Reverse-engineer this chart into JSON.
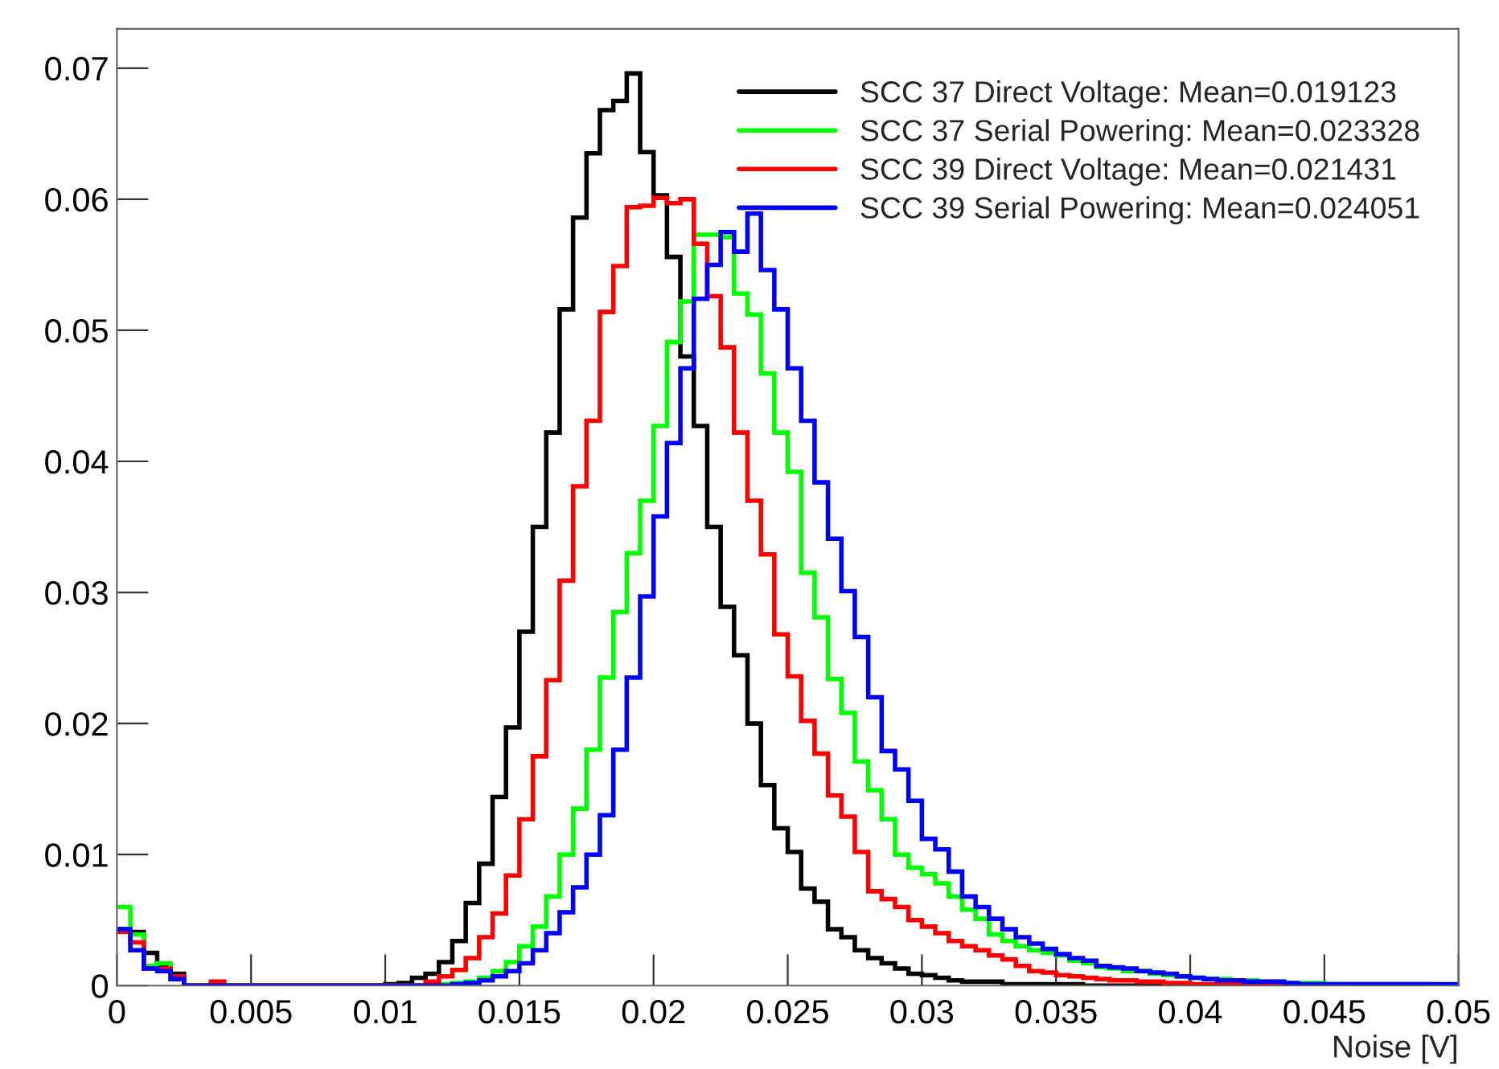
{
  "chart_data": {
    "type": "histogram",
    "xlabel": "Noise [V]",
    "bins": [
      0,
      0.0005,
      0.001,
      0.0015,
      0.002,
      0.0025,
      0.003,
      0.0035,
      0.004,
      0.0045,
      0.005,
      0.0055,
      0.006,
      0.0065,
      0.007,
      0.0075,
      0.008,
      0.0085,
      0.009,
      0.0095,
      0.01,
      0.0105,
      0.011,
      0.0115,
      0.012,
      0.0125,
      0.013,
      0.0135,
      0.014,
      0.0145,
      0.015,
      0.0155,
      0.016,
      0.0165,
      0.017,
      0.0175,
      0.018,
      0.0185,
      0.019,
      0.0195,
      0.02,
      0.0205,
      0.021,
      0.0215,
      0.022,
      0.0225,
      0.023,
      0.0235,
      0.024,
      0.0245,
      0.025,
      0.0255,
      0.026,
      0.0265,
      0.027,
      0.0275,
      0.028,
      0.0285,
      0.029,
      0.0295,
      0.03,
      0.0305,
      0.031,
      0.0315,
      0.032,
      0.0325,
      0.033,
      0.0335,
      0.034,
      0.0345,
      0.035,
      0.0355,
      0.036,
      0.0365,
      0.037,
      0.0375,
      0.038,
      0.0385,
      0.039,
      0.0395,
      0.04,
      0.0405,
      0.041,
      0.0415,
      0.042,
      0.0425,
      0.043,
      0.0435,
      0.044,
      0.0445,
      0.045,
      0.0455,
      0.046,
      0.0465,
      0.047,
      0.0475,
      0.048,
      0.0485,
      0.049,
      0.0495,
      0.05
    ],
    "series": [
      {
        "name": "SCC 37 Direct Voltage: Mean=0.019123",
        "color": "#000000",
        "values": [
          0.0043,
          0.0041,
          0.0025,
          0.0015,
          0.0009,
          0,
          0,
          0,
          0,
          0,
          0,
          0,
          0,
          0,
          0,
          0,
          0,
          0,
          0,
          0,
          0.0001,
          0.0002,
          0.0006,
          0.0009,
          0.0018,
          0.0034,
          0.0063,
          0.0093,
          0.0144,
          0.0197,
          0.027,
          0.035,
          0.0422,
          0.0516,
          0.0586,
          0.0635,
          0.0668,
          0.0675,
          0.0696,
          0.0636,
          0.0603,
          0.0556,
          0.048,
          0.0427,
          0.035,
          0.0289,
          0.0252,
          0.02,
          0.0153,
          0.012,
          0.0102,
          0.0074,
          0.0064,
          0.0043,
          0.0037,
          0.0027,
          0.0021,
          0.0017,
          0.0013,
          0.0009,
          0.0008,
          0.0006,
          0.0004,
          0.0003,
          0.0003,
          0.0003,
          0.0001,
          0.0001,
          0.0001,
          0.0001,
          0.0001,
          0.0001,
          0,
          0,
          0,
          0,
          0,
          0,
          0,
          0,
          0,
          0,
          0,
          0,
          0,
          0,
          0,
          0,
          0,
          0,
          0,
          0,
          0,
          0,
          0,
          0,
          0,
          0,
          0,
          0
        ]
      },
      {
        "name": "SCC 37 Serial Powering: Mean=0.023328",
        "color": "#00ff00",
        "values": [
          0.006,
          0.0039,
          0.0015,
          0.0017,
          0.0005,
          0,
          0,
          0,
          0,
          0,
          0,
          0,
          0,
          0,
          0,
          0,
          0,
          0,
          0,
          0,
          0,
          0,
          0,
          0,
          0.0001,
          0.0002,
          0.0003,
          0.0006,
          0.0011,
          0.0018,
          0.003,
          0.0045,
          0.0068,
          0.01,
          0.0135,
          0.018,
          0.0235,
          0.0285,
          0.033,
          0.037,
          0.0427,
          0.0491,
          0.0522,
          0.0573,
          0.0573,
          0.0571,
          0.0528,
          0.0512,
          0.0467,
          0.0422,
          0.0392,
          0.0315,
          0.0281,
          0.0234,
          0.0208,
          0.0171,
          0.0149,
          0.0127,
          0.01,
          0.009,
          0.0085,
          0.0078,
          0.0068,
          0.0058,
          0.0051,
          0.0039,
          0.0034,
          0.003,
          0.0027,
          0.0025,
          0.0023,
          0.0019,
          0.0017,
          0.0014,
          0.0013,
          0.0011,
          0.0011,
          0.0009,
          0.0008,
          0.0007,
          0.0006,
          0.0005,
          0.0005,
          0.0004,
          0.0004,
          0.0003,
          0.0003,
          0.0002,
          0.0002,
          0.0002,
          0.0001,
          0.0001,
          0.0001,
          0.0001,
          0.0001,
          0.0001,
          0.0001,
          0.0001,
          0,
          0
        ]
      },
      {
        "name": "SCC 39 Direct Voltage: Mean=0.021431",
        "color": "#ff0000",
        "values": [
          0.0041,
          0.0033,
          0.0013,
          0.0013,
          0.0007,
          0,
          0,
          0.0003,
          0,
          0,
          0,
          0,
          0,
          0,
          0,
          0,
          0,
          0,
          0,
          0,
          0,
          0,
          0,
          0.0003,
          0.0007,
          0.0012,
          0.0021,
          0.0037,
          0.0055,
          0.0084,
          0.0127,
          0.0175,
          0.0233,
          0.0309,
          0.0381,
          0.0431,
          0.0514,
          0.0549,
          0.0594,
          0.0595,
          0.0601,
          0.0597,
          0.06,
          0.0566,
          0.0526,
          0.0487,
          0.0422,
          0.037,
          0.0329,
          0.0268,
          0.0236,
          0.0202,
          0.0177,
          0.0145,
          0.0129,
          0.0102,
          0.0072,
          0.0066,
          0.006,
          0.005,
          0.0045,
          0.004,
          0.0034,
          0.003,
          0.0027,
          0.0023,
          0.002,
          0.0015,
          0.0011,
          0.001,
          0.0008,
          0.0007,
          0.0006,
          0.0005,
          0.0004,
          0.0004,
          0.0003,
          0.0003,
          0.0002,
          0.0002,
          0.0001,
          0.0001,
          0.0001,
          0.0001,
          0.0001,
          0.0001,
          0,
          0,
          0,
          0,
          0,
          0,
          0,
          0,
          0,
          0,
          0,
          0,
          0,
          0
        ]
      },
      {
        "name": "SCC 39 Serial Powering: Mean=0.024051",
        "color": "#0000ff",
        "values": [
          0.0043,
          0.0027,
          0.0013,
          0.0011,
          0.0005,
          0,
          0,
          0,
          0,
          0,
          0,
          0,
          0,
          0,
          0,
          0,
          0,
          0,
          0,
          0,
          0,
          0,
          0,
          0,
          0,
          0.0001,
          0.0002,
          0.0004,
          0.0007,
          0.0011,
          0.0017,
          0.0027,
          0.004,
          0.0056,
          0.0075,
          0.01,
          0.013,
          0.018,
          0.0235,
          0.0297,
          0.0358,
          0.0414,
          0.0471,
          0.0524,
          0.055,
          0.0575,
          0.056,
          0.0589,
          0.0546,
          0.0516,
          0.0471,
          0.0431,
          0.0384,
          0.0341,
          0.0301,
          0.0266,
          0.022,
          0.0179,
          0.0165,
          0.0141,
          0.0112,
          0.0104,
          0.0087,
          0.0068,
          0.006,
          0.0051,
          0.0043,
          0.0037,
          0.0032,
          0.0028,
          0.0024,
          0.0021,
          0.0019,
          0.0015,
          0.0014,
          0.0013,
          0.0011,
          0.001,
          0.0009,
          0.0007,
          0.0006,
          0.0005,
          0.0004,
          0.0004,
          0.0003,
          0.0003,
          0.0003,
          0.0002,
          0.0001,
          0.0001,
          0.0001,
          0.0001,
          0.0001,
          0.0001,
          0.0001,
          0.0001,
          0.0001,
          0.0001,
          0.0001,
          0.0001
        ]
      }
    ],
    "xlim": [
      0,
      0.05
    ],
    "xticks": [
      0,
      0.005,
      0.01,
      0.015,
      0.02,
      0.025,
      0.03,
      0.035,
      0.04,
      0.045,
      0.05
    ],
    "ylim": [
      0,
      0.073
    ],
    "yticks": [
      0,
      0.01,
      0.02,
      0.03,
      0.04,
      0.05,
      0.06,
      0.07
    ],
    "legend": "top right",
    "grid": false
  }
}
